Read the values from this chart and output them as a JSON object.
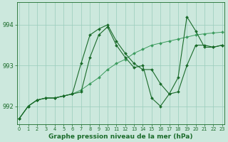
{
  "background_color": "#cce8dd",
  "plot_bg_color": "#cce8dd",
  "grid_color": "#99ccbb",
  "line_color_dark": "#1a6b2a",
  "line_color_light": "#3a9a5c",
  "xlabel": "Graphe pression niveau de la mer (hPa)",
  "xlabel_fontsize": 6.5,
  "ytick_fontsize": 6,
  "xtick_fontsize": 4.8,
  "yticks": [
    992,
    993,
    994
  ],
  "xticks": [
    0,
    1,
    2,
    3,
    4,
    5,
    6,
    7,
    8,
    9,
    10,
    11,
    12,
    13,
    14,
    15,
    16,
    17,
    18,
    19,
    20,
    21,
    22,
    23
  ],
  "xlim": [
    -0.3,
    23.3
  ],
  "ylim": [
    991.55,
    994.55
  ],
  "series1_x": [
    0,
    1,
    2,
    3,
    4,
    5,
    6,
    7,
    8,
    9,
    10,
    11,
    12,
    13,
    14,
    15,
    16,
    17,
    18,
    19,
    20,
    21,
    22,
    23
  ],
  "series1_y": [
    991.7,
    992.0,
    992.15,
    992.2,
    992.2,
    992.25,
    992.3,
    992.4,
    992.55,
    992.7,
    992.9,
    993.05,
    993.15,
    993.3,
    993.4,
    993.5,
    993.55,
    993.6,
    993.65,
    993.7,
    993.75,
    993.78,
    993.8,
    993.82
  ],
  "series2_x": [
    0,
    1,
    2,
    3,
    4,
    5,
    6,
    7,
    8,
    9,
    10,
    11,
    12,
    13,
    14,
    15,
    16,
    17,
    18,
    19,
    20,
    21,
    22,
    23
  ],
  "series2_y": [
    991.7,
    992.0,
    992.15,
    992.2,
    992.2,
    992.25,
    992.3,
    993.05,
    993.75,
    993.9,
    994.0,
    993.6,
    993.3,
    993.05,
    992.9,
    992.9,
    992.55,
    992.3,
    992.35,
    993.0,
    993.5,
    993.5,
    993.45,
    993.5
  ],
  "series3_x": [
    0,
    1,
    2,
    3,
    4,
    5,
    6,
    7,
    8,
    9,
    10,
    11,
    12,
    13,
    14,
    15,
    16,
    17,
    18,
    19,
    20,
    21,
    22,
    23
  ],
  "series3_y": [
    991.7,
    992.0,
    992.15,
    992.2,
    992.2,
    992.25,
    992.3,
    992.35,
    993.2,
    993.75,
    993.95,
    993.5,
    993.2,
    992.95,
    993.0,
    992.2,
    992.0,
    992.3,
    992.7,
    994.2,
    993.85,
    993.45,
    993.45,
    993.5
  ]
}
